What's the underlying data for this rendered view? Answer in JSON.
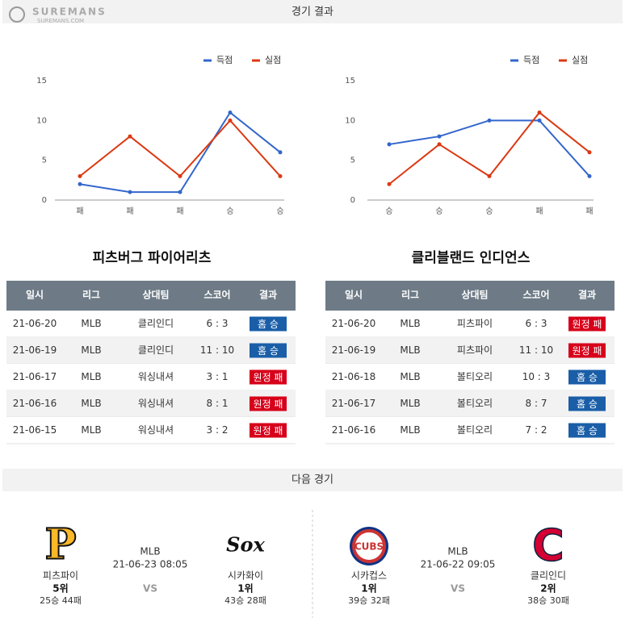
{
  "header": {
    "title": "경기 결과",
    "logo": "SUREMANS",
    "logo_sub": "SUREMANS.COM"
  },
  "chart_data": [
    {
      "type": "line",
      "categories": [
        "패",
        "패",
        "패",
        "승",
        "승"
      ],
      "series": [
        {
          "name": "득점",
          "color": "#3366cc",
          "values": [
            2,
            1,
            1,
            11,
            6
          ]
        },
        {
          "name": "실점",
          "color": "#dc3912",
          "values": [
            3,
            8,
            3,
            10,
            3
          ]
        }
      ],
      "ylim": [
        0,
        15
      ],
      "yticks": [
        0,
        5,
        10,
        15
      ],
      "grid": false,
      "legend": "top-right"
    },
    {
      "type": "line",
      "categories": [
        "승",
        "승",
        "승",
        "패",
        "패"
      ],
      "series": [
        {
          "name": "득점",
          "color": "#3366cc",
          "values": [
            7,
            8,
            10,
            10,
            3
          ]
        },
        {
          "name": "실점",
          "color": "#dc3912",
          "values": [
            2,
            7,
            3,
            11,
            6
          ]
        }
      ],
      "ylim": [
        0,
        15
      ],
      "yticks": [
        0,
        5,
        10,
        15
      ],
      "grid": false,
      "legend": "top-right"
    }
  ],
  "teams": [
    {
      "name": "피츠버그 파이어리츠",
      "columns": [
        "일시",
        "리그",
        "상대팀",
        "스코어",
        "결과"
      ],
      "rows": [
        [
          "21-06-20",
          "MLB",
          "클리인디",
          "6 : 3",
          {
            "label": "홈 승",
            "color": "#1a5ea8"
          }
        ],
        [
          "21-06-19",
          "MLB",
          "클리인디",
          "11 : 10",
          {
            "label": "홈 승",
            "color": "#1a5ea8"
          }
        ],
        [
          "21-06-17",
          "MLB",
          "워싱내셔",
          "3 : 1",
          {
            "label": "원정 패",
            "color": "#d7001a"
          }
        ],
        [
          "21-06-16",
          "MLB",
          "워싱내셔",
          "8 : 1",
          {
            "label": "원정 패",
            "color": "#d7001a"
          }
        ],
        [
          "21-06-15",
          "MLB",
          "워싱내셔",
          "3 : 2",
          {
            "label": "원정 패",
            "color": "#d7001a"
          }
        ]
      ]
    },
    {
      "name": "클리블랜드 인디언스",
      "columns": [
        "일시",
        "리그",
        "상대팀",
        "스코어",
        "결과"
      ],
      "rows": [
        [
          "21-06-20",
          "MLB",
          "피츠파이",
          "6 : 3",
          {
            "label": "원정 패",
            "color": "#d7001a"
          }
        ],
        [
          "21-06-19",
          "MLB",
          "피츠파이",
          "11 : 10",
          {
            "label": "원정 패",
            "color": "#d7001a"
          }
        ],
        [
          "21-06-18",
          "MLB",
          "볼티오리",
          "10 : 3",
          {
            "label": "홈 승",
            "color": "#1a5ea8"
          }
        ],
        [
          "21-06-17",
          "MLB",
          "볼티오리",
          "8 : 7",
          {
            "label": "홈 승",
            "color": "#1a5ea8"
          }
        ],
        [
          "21-06-16",
          "MLB",
          "볼티오리",
          "7 : 2",
          {
            "label": "홈 승",
            "color": "#1a5ea8"
          }
        ]
      ]
    }
  ],
  "next_games": {
    "title": "다음 경기",
    "matches": [
      {
        "league": "MLB",
        "datetime": "21-06-23 08:05",
        "vs": "VS",
        "teams": [
          {
            "logo_text": "P",
            "name": "피츠파이",
            "rank": "5위",
            "record": "25승 44패"
          },
          {
            "logo_text": "Sox",
            "name": "시카화이",
            "rank": "1위",
            "record": "43승 28패"
          }
        ]
      },
      {
        "league": "MLB",
        "datetime": "21-06-22 09:05",
        "vs": "VS",
        "teams": [
          {
            "logo_text": "CUBS",
            "name": "시카컵스",
            "rank": "1위",
            "record": "39승 32패"
          },
          {
            "logo_text": "C",
            "name": "클리인디",
            "rank": "2위",
            "record": "38승 30패"
          }
        ]
      }
    ]
  }
}
